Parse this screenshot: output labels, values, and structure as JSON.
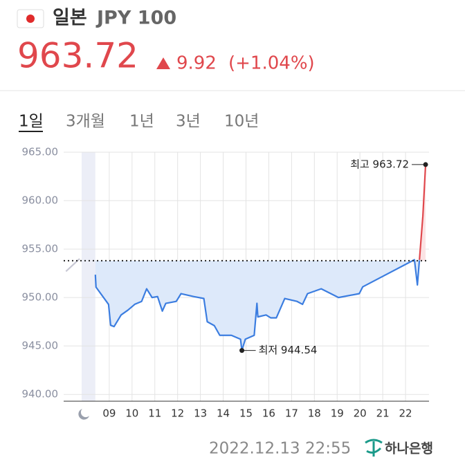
{
  "header": {
    "country": "일본",
    "currency": "JPY 100",
    "price": "963.72",
    "change": "9.92",
    "change_pct": "(+1.04%)"
  },
  "tabs": [
    "1일",
    "3개월",
    "1년",
    "3년",
    "10년"
  ],
  "chart_data": {
    "type": "line",
    "xlim": [
      7,
      23.03
    ],
    "ylim": [
      939.3,
      965
    ],
    "yticks": [
      {
        "value": 965,
        "label": "965.00"
      },
      {
        "value": 960,
        "label": "960.00"
      },
      {
        "value": 955,
        "label": "955.00"
      },
      {
        "value": 950,
        "label": "950.00"
      },
      {
        "value": 945,
        "label": "945.00"
      },
      {
        "value": 940,
        "label": "940.00"
      }
    ],
    "xticks": [
      {
        "value": 9,
        "label": "09"
      },
      10,
      11,
      12,
      13,
      14,
      15,
      16,
      17,
      18,
      19,
      20,
      21,
      22
    ],
    "grid": true,
    "baseline": 953.8,
    "shaded_range": [
      7.79,
      8.39
    ],
    "series": [
      {
        "color": "#c8c8d4",
        "x": [
          7.1,
          7.7
        ],
        "values": [
          952.7,
          954.0
        ]
      },
      {
        "color": "#3b7de0",
        "fill": "#dde9fa",
        "x": [
          8.39,
          8.42,
          8.97,
          9.06,
          9.21,
          9.52,
          9.82,
          10.12,
          10.42,
          10.64,
          10.88,
          11.12,
          11.33,
          11.48,
          11.94,
          12.15,
          12.7,
          13.15,
          13.3,
          13.61,
          13.85,
          14.36,
          14.76,
          14.82,
          14.97,
          15.36,
          15.48,
          15.52,
          15.88,
          16.09,
          16.33,
          16.7,
          17.24,
          17.48,
          17.7,
          18.3,
          19.06,
          19.97,
          20.12,
          22.39,
          22.52,
          22.61
        ],
        "values": [
          952.36,
          951.07,
          949.29,
          947.14,
          947.0,
          948.2,
          948.7,
          949.3,
          949.6,
          950.9,
          950.0,
          950.1,
          948.6,
          949.4,
          949.6,
          950.4,
          950.1,
          949.9,
          947.5,
          947.1,
          946.1,
          946.1,
          945.7,
          944.54,
          945.7,
          946.1,
          949.4,
          948.0,
          948.2,
          947.9,
          947.9,
          949.9,
          949.6,
          949.3,
          950.4,
          950.9,
          950.0,
          950.4,
          951.1,
          953.9,
          951.3,
          953.9
        ]
      },
      {
        "color": "#e0474c",
        "fill": "#fbe3e4",
        "x": [
          22.61,
          22.76,
          22.88
        ],
        "values": [
          953.9,
          958.4,
          963.72
        ]
      }
    ],
    "annotations": [
      {
        "text": "최고 963.72",
        "x": 22.88,
        "y": 963.72,
        "side": "left"
      },
      {
        "text": "최저 944.54",
        "x": 14.82,
        "y": 944.54,
        "side": "right"
      }
    ]
  },
  "footer": {
    "timestamp": "2022.12.13 22:55",
    "bank": "하나은행"
  }
}
